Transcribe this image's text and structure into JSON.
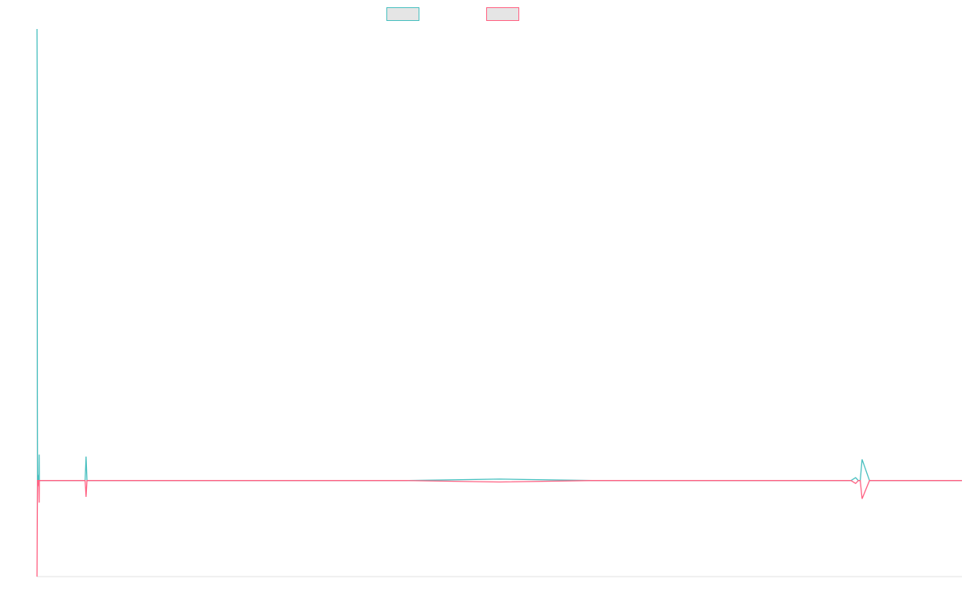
{
  "chart_data": {
    "type": "line",
    "title": "",
    "xlabel": "",
    "ylabel": "",
    "grid": false,
    "legend_placement": "top-center",
    "x": [
      0,
      0.2,
      0.4,
      0.6,
      1,
      1.3,
      1.5,
      1.8,
      2,
      2.3,
      2.5,
      2.8,
      3,
      4,
      5,
      10,
      20,
      30,
      40,
      50,
      52,
      53,
      54,
      55,
      60,
      80,
      100,
      120,
      140,
      160,
      200,
      300,
      400,
      500,
      600,
      700,
      800,
      880,
      885,
      888,
      890,
      892,
      900,
      1000
    ],
    "ylim": [
      -100,
      470
    ],
    "xlim": [
      0,
      1000
    ],
    "series": [
      {
        "name": "",
        "color": "#4bc0c0",
        "fill": "#e5e5e5",
        "values": [
          470,
          400,
          80,
          0,
          0,
          0,
          0,
          6,
          0,
          27,
          0,
          0,
          0,
          0,
          0,
          0,
          0,
          0,
          0,
          0,
          0,
          25,
          0,
          0,
          0,
          0,
          0,
          0,
          0,
          0,
          0,
          0,
          0,
          1.5,
          0,
          0,
          0,
          0,
          3,
          0,
          0,
          22,
          0,
          0
        ]
      },
      {
        "name": "",
        "color": "#ff6384",
        "fill": "#e5e5e5",
        "values": [
          -100,
          -60,
          -25,
          0,
          0,
          0,
          0,
          -6,
          0,
          -23,
          0,
          0,
          0,
          0,
          0,
          0,
          0,
          0,
          0,
          0,
          0,
          -17,
          0,
          0,
          0,
          0,
          0,
          0,
          0,
          0,
          0,
          0,
          0,
          -1.5,
          0,
          0,
          0,
          0,
          -3,
          0,
          0,
          -19,
          0,
          0
        ]
      }
    ]
  }
}
